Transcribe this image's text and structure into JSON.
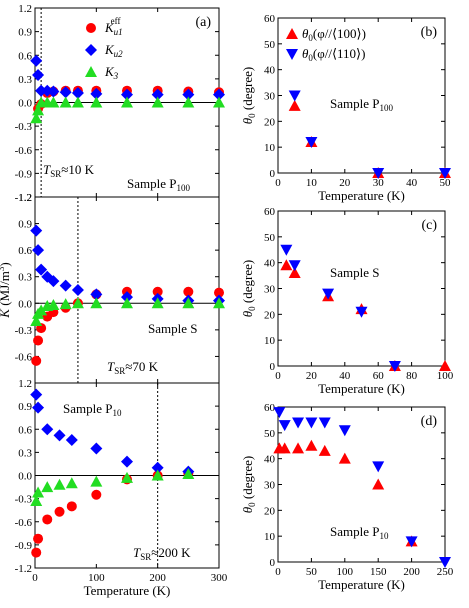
{
  "colors": {
    "red": "#ff0000",
    "blue": "#0000ff",
    "green": "#22dd22",
    "axis": "#000000"
  },
  "chart_data": [
    {
      "id": "a",
      "type": "scatter",
      "label": "(a)",
      "sample": "Sample P_100",
      "sample_main": "Sample P",
      "sample_sub": "100",
      "tsr_main": "T",
      "tsr_sub": "SR",
      "tsr_rest": "≈10 K",
      "x_range": [
        0,
        300
      ],
      "y_range": [
        -1.2,
        1.2
      ],
      "yticks": [
        -1.2,
        -0.9,
        -0.6,
        -0.3,
        0.0,
        0.3,
        0.6,
        0.9,
        1.2
      ],
      "yticklabels": [
        "-1.2",
        "-0.9",
        "-0.6",
        "-0.3",
        "0.0",
        "0.3",
        "0.6",
        "0.9",
        "1.2"
      ],
      "xticks": [
        0,
        100,
        200,
        300
      ],
      "vline_x": 10,
      "legend": [
        {
          "main": "K",
          "sub": "u1",
          "sup": "eff"
        },
        {
          "main": "K",
          "sub": "u2",
          "sup": ""
        },
        {
          "main": "K",
          "sub": "3",
          "sup": ""
        }
      ],
      "series": [
        {
          "name": "K_u1^eff",
          "marker": "circle",
          "color": "red",
          "x": [
            5,
            10,
            20,
            30,
            50,
            70,
            100,
            150,
            200,
            250,
            300
          ],
          "y": [
            -0.08,
            -0.02,
            0.12,
            0.14,
            0.15,
            0.15,
            0.15,
            0.15,
            0.15,
            0.14,
            0.13
          ]
        },
        {
          "name": "K_u2",
          "marker": "diamond",
          "color": "blue",
          "x": [
            2,
            5,
            10,
            20,
            30,
            50,
            70,
            100,
            150,
            200,
            250,
            300
          ],
          "y": [
            0.53,
            0.35,
            0.15,
            0.15,
            0.14,
            0.13,
            0.12,
            0.11,
            0.1,
            0.1,
            0.1,
            0.1
          ]
        },
        {
          "name": "K_3",
          "marker": "triangle",
          "color": "green",
          "x": [
            2,
            5,
            10,
            20,
            30,
            50,
            70,
            100,
            150,
            200,
            250,
            300
          ],
          "y": [
            -0.2,
            -0.1,
            0.0,
            0.0,
            0.0,
            0.0,
            0.0,
            0.0,
            0.0,
            0.0,
            0.0,
            0.0
          ]
        }
      ]
    },
    {
      "id": "k_s",
      "type": "scatter",
      "label": "",
      "ylabel_main": "K",
      "ylabel_rest": " (MJ/m",
      "ylabel_sup": "3",
      "ylabel_end": ")",
      "sample_main": "Sample S",
      "sample_sub": "",
      "tsr_main": "T",
      "tsr_sub": "SR",
      "tsr_rest": "≈70 K",
      "x_range": [
        0,
        300
      ],
      "y_range": [
        -0.9,
        1.2
      ],
      "yticks": [
        -0.6,
        -0.3,
        0.0,
        0.3,
        0.6,
        0.9,
        1.2
      ],
      "yticklabels": [
        "-0.6",
        "-0.3",
        "0.0",
        "0.3",
        "0.6",
        "0.9",
        "1.2"
      ],
      "xticks": [
        0,
        100,
        200,
        300
      ],
      "vline_x": 70,
      "series": [
        {
          "name": "K_u1^eff",
          "marker": "circle",
          "color": "red",
          "x": [
            2,
            5,
            10,
            20,
            30,
            50,
            70,
            100,
            150,
            200,
            250,
            300
          ],
          "y": [
            -0.65,
            -0.42,
            -0.28,
            -0.15,
            -0.1,
            -0.05,
            0.0,
            0.1,
            0.13,
            0.13,
            0.13,
            0.12
          ]
        },
        {
          "name": "K_u2",
          "marker": "diamond",
          "color": "blue",
          "x": [
            2,
            5,
            10,
            20,
            30,
            50,
            70,
            100,
            150,
            200,
            250,
            300
          ],
          "y": [
            0.82,
            0.6,
            0.38,
            0.3,
            0.25,
            0.2,
            0.15,
            0.1,
            0.07,
            0.05,
            0.03,
            0.03
          ]
        },
        {
          "name": "K_3",
          "marker": "triangle",
          "color": "green",
          "x": [
            2,
            5,
            10,
            20,
            30,
            50,
            70,
            100,
            150,
            200,
            250,
            300
          ],
          "y": [
            -0.2,
            -0.12,
            -0.08,
            -0.03,
            -0.02,
            -0.01,
            0.0,
            0.0,
            0.0,
            0.0,
            0.0,
            0.0
          ]
        }
      ]
    },
    {
      "id": "k_p10",
      "type": "scatter",
      "label": "",
      "sample_main": "Sample P",
      "sample_sub": "10",
      "tsr_main": "T",
      "tsr_sub": "SR",
      "tsr_rest": "≈200 K",
      "xlabel": "Temperature (K)",
      "x_range": [
        0,
        300
      ],
      "y_range": [
        -1.2,
        1.2
      ],
      "yticks": [
        -1.2,
        -0.9,
        -0.6,
        -0.3,
        0.0,
        0.3,
        0.6,
        0.9,
        1.2
      ],
      "yticklabels": [
        "-1.2",
        "-0.9",
        "-0.6",
        "-0.3",
        "0.0",
        "0.3",
        "0.6",
        "0.9",
        "1.2"
      ],
      "xticks": [
        0,
        100,
        200,
        300
      ],
      "xticklabels": [
        "0",
        "100",
        "200",
        "300"
      ],
      "vline_x": 200,
      "series": [
        {
          "name": "K_u1^eff",
          "marker": "circle",
          "color": "red",
          "x": [
            2,
            5,
            20,
            40,
            60,
            100,
            150,
            200,
            250
          ],
          "y": [
            -1.0,
            -0.82,
            -0.57,
            -0.47,
            -0.4,
            -0.25,
            -0.05,
            0.0,
            0.03
          ]
        },
        {
          "name": "K_u2",
          "marker": "diamond",
          "color": "blue",
          "x": [
            2,
            5,
            20,
            40,
            60,
            100,
            150,
            200,
            250
          ],
          "y": [
            1.05,
            0.88,
            0.6,
            0.52,
            0.46,
            0.35,
            0.18,
            0.1,
            0.05
          ]
        },
        {
          "name": "K_3",
          "marker": "triangle",
          "color": "green",
          "x": [
            2,
            5,
            20,
            40,
            60,
            100,
            150,
            200,
            250
          ],
          "y": [
            -0.33,
            -0.22,
            -0.15,
            -0.12,
            -0.1,
            -0.08,
            -0.03,
            0.0,
            0.02
          ]
        }
      ]
    },
    {
      "id": "b",
      "type": "scatter",
      "label": "(b)",
      "ylabel_main": "θ",
      "ylabel_sub": "0",
      "ylabel_rest": " (degree)",
      "sample_main": "Sample P",
      "sample_sub": "100",
      "xlabel": "Temperature (K)",
      "x_range": [
        0,
        50
      ],
      "y_range": [
        0,
        60
      ],
      "yticks": [
        0,
        10,
        20,
        30,
        40,
        50,
        60
      ],
      "yticklabels": [
        "0",
        "10",
        "20",
        "30",
        "40",
        "50",
        "60"
      ],
      "xticks": [
        0,
        10,
        20,
        30,
        40,
        50
      ],
      "xticklabels": [
        "0",
        "10",
        "20",
        "30",
        "40",
        "50"
      ],
      "legend": [
        {
          "main": "θ",
          "sub": "0",
          "rest": "(φ//⟨100⟩)"
        },
        {
          "main": "θ",
          "sub": "0",
          "rest": "(φ//⟨110⟩)"
        }
      ],
      "series": [
        {
          "name": "θ0(φ//⟨100⟩)",
          "marker": "triangle",
          "color": "red",
          "x": [
            5,
            10,
            30,
            50
          ],
          "y": [
            26,
            12,
            0,
            0
          ]
        },
        {
          "name": "θ0(φ//⟨110⟩)",
          "marker": "triangle-down",
          "color": "blue",
          "x": [
            5,
            10,
            30,
            50
          ],
          "y": [
            30,
            12,
            0,
            0
          ]
        }
      ]
    },
    {
      "id": "c",
      "type": "scatter",
      "label": "(c)",
      "ylabel_main": "θ",
      "ylabel_sub": "0",
      "ylabel_rest": " (degree)",
      "sample_main": "Sample S",
      "sample_sub": "",
      "xlabel": "Temperature (K)",
      "x_range": [
        0,
        100
      ],
      "y_range": [
        0,
        60
      ],
      "yticks": [
        0,
        10,
        20,
        30,
        40,
        50,
        60
      ],
      "yticklabels": [
        "0",
        "10",
        "20",
        "30",
        "40",
        "50",
        "60"
      ],
      "xticks": [
        0,
        20,
        40,
        60,
        80,
        100
      ],
      "xticklabels": [
        "0",
        "20",
        "40",
        "60",
        "80",
        "100"
      ],
      "series": [
        {
          "name": "θ0(φ//⟨100⟩)",
          "marker": "triangle",
          "color": "red",
          "x": [
            5,
            10,
            30,
            50,
            70,
            100
          ],
          "y": [
            39,
            36,
            27,
            22,
            0,
            0
          ]
        },
        {
          "name": "θ0(φ//⟨110⟩)",
          "marker": "triangle-down",
          "color": "blue",
          "x": [
            5,
            10,
            30,
            50,
            70
          ],
          "y": [
            45,
            39,
            28,
            21,
            0
          ]
        }
      ]
    },
    {
      "id": "d",
      "type": "scatter",
      "label": "(d)",
      "ylabel_main": "θ",
      "ylabel_sub": "0",
      "ylabel_rest": " (degree)",
      "sample_main": "Sample P",
      "sample_sub": "10",
      "xlabel": "Temperature (K)",
      "x_range": [
        0,
        250
      ],
      "y_range": [
        0,
        60
      ],
      "yticks": [
        0,
        10,
        20,
        30,
        40,
        50,
        60
      ],
      "yticklabels": [
        "0",
        "10",
        "20",
        "30",
        "40",
        "50",
        "60"
      ],
      "xticks": [
        0,
        50,
        100,
        150,
        200,
        250
      ],
      "xticklabels": [
        "0",
        "50",
        "100",
        "150",
        "200",
        "250"
      ],
      "series": [
        {
          "name": "θ0(φ//⟨100⟩)",
          "marker": "triangle",
          "color": "red",
          "x": [
            2,
            10,
            30,
            50,
            70,
            100,
            150,
            200
          ],
          "y": [
            44,
            44,
            44,
            45,
            43,
            40,
            30,
            8
          ]
        },
        {
          "name": "θ0(φ//⟨110⟩)",
          "marker": "triangle-down",
          "color": "blue",
          "x": [
            2,
            10,
            30,
            50,
            70,
            100,
            150,
            200,
            250
          ],
          "y": [
            58,
            53,
            54,
            54,
            54,
            51,
            37,
            8,
            0
          ]
        }
      ]
    }
  ]
}
